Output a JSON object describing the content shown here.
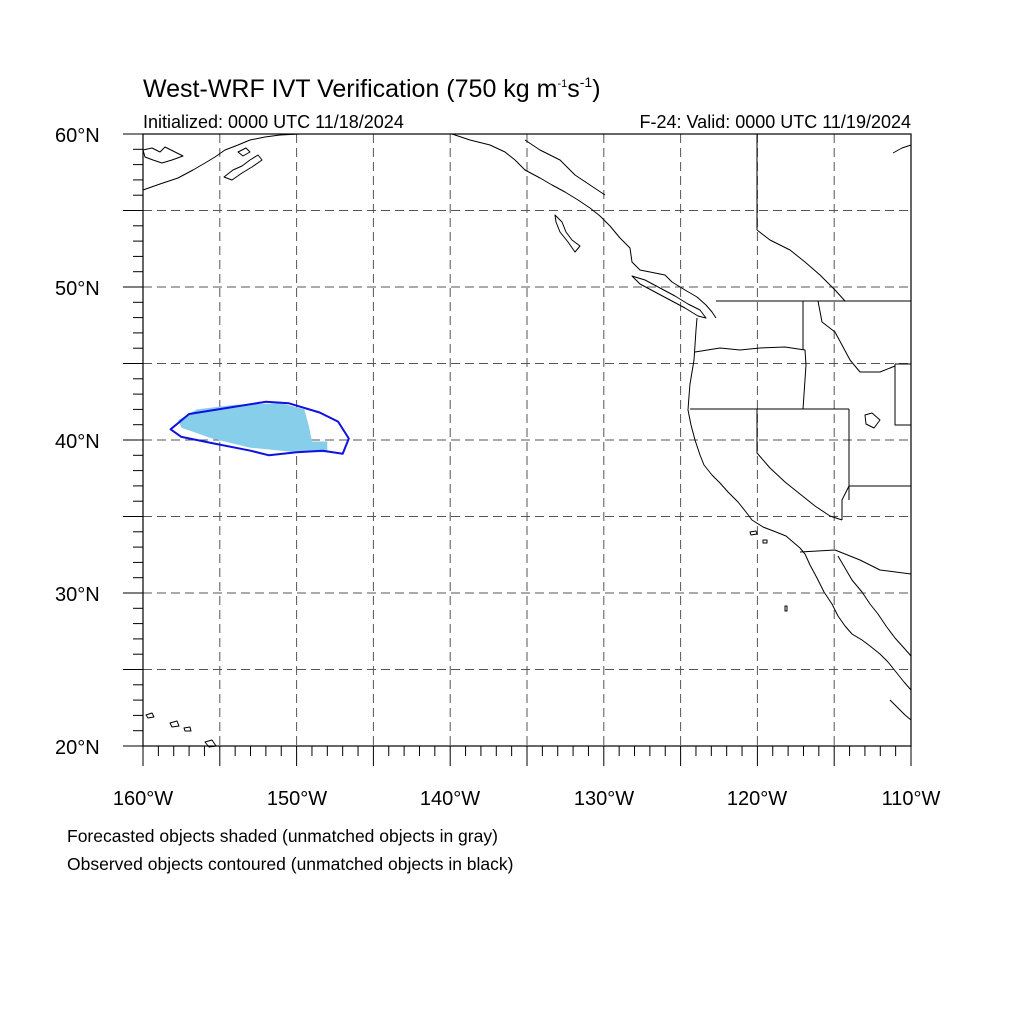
{
  "title": {
    "text": "West-WRF IVT Verification (750 kg m",
    "sup1": "-1",
    "s": "s",
    "sup2": "-1",
    "close": ")"
  },
  "subtitle_left": "Initialized: 0000 UTC 11/18/2024",
  "subtitle_right": "F-24: Valid: 0000 UTC 11/19/2024",
  "footnotes": [
    "Forecasted objects shaded (unmatched objects in gray)",
    "Observed objects contoured (unmatched objects in black)"
  ],
  "map": {
    "projection": "cylindrical-equidistant",
    "lon_range": [
      -160,
      -110
    ],
    "lat_range": [
      20,
      60
    ],
    "grid_spacing_deg": 5,
    "grid_style": "dashed",
    "lon_tick_labels": [
      "160°W",
      "150°W",
      "140°W",
      "130°W",
      "120°W",
      "110°W"
    ],
    "lat_tick_labels": [
      "20°N",
      "30°N",
      "40°N",
      "50°N",
      "60°N"
    ],
    "colors": {
      "forecast_fill": "#87ceeb",
      "observed_contour": "#1010e0",
      "coast": "#000000",
      "grid": "#555555"
    },
    "forecast_object": [
      [
        -157.7,
        41.3
      ],
      [
        -156.5,
        42.0
      ],
      [
        -154.0,
        42.3
      ],
      [
        -151.0,
        42.4
      ],
      [
        -149.5,
        42.0
      ],
      [
        -149.2,
        40.9
      ],
      [
        -149.0,
        39.9
      ],
      [
        -148.0,
        39.9
      ],
      [
        -148.0,
        39.2
      ],
      [
        -150.0,
        39.2
      ],
      [
        -153.0,
        39.5
      ],
      [
        -155.5,
        40.1
      ],
      [
        -157.5,
        40.8
      ]
    ],
    "observed_object": [
      [
        -158.2,
        40.7
      ],
      [
        -157.0,
        41.7
      ],
      [
        -154.5,
        42.1
      ],
      [
        -152.0,
        42.5
      ],
      [
        -150.5,
        42.4
      ],
      [
        -148.5,
        41.8
      ],
      [
        -147.3,
        41.2
      ],
      [
        -146.6,
        40.1
      ],
      [
        -147.0,
        39.1
      ],
      [
        -148.3,
        39.3
      ],
      [
        -150.0,
        39.2
      ],
      [
        -151.8,
        39.0
      ],
      [
        -153.0,
        39.3
      ],
      [
        -155.5,
        39.8
      ],
      [
        -157.5,
        40.2
      ]
    ]
  }
}
